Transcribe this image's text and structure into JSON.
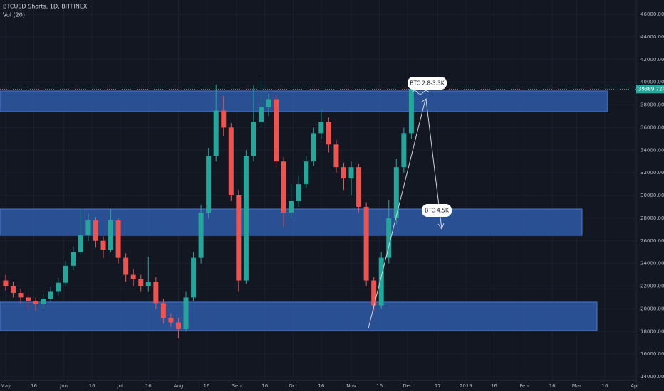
{
  "chart_data": {
    "type": "candlestick",
    "title": "BTCUSD Shorts, 1D, BITFINEX",
    "indicator": "Vol (20)",
    "up_color": "#26a69a",
    "down_color": "#ef5350",
    "zone_color": "#2f5aa8",
    "x": [
      0,
      4,
      8,
      12,
      16,
      20,
      24,
      28,
      32,
      36,
      40,
      44,
      48,
      52,
      56,
      60,
      64,
      68,
      72,
      76,
      80,
      84,
      88,
      92,
      96,
      100,
      104,
      108,
      112,
      116,
      120,
      124,
      128,
      132,
      136,
      140,
      144,
      148,
      152,
      156,
      160,
      164,
      168,
      172,
      176,
      180,
      184,
      188,
      192,
      196,
      200,
      204,
      208,
      212,
      216
    ],
    "open": [
      22500,
      22000,
      21400,
      21000,
      20700,
      20400,
      20900,
      21500,
      22300,
      23800,
      25000,
      26500,
      27800,
      26000,
      25200,
      27800,
      24500,
      23000,
      22600,
      22000,
      22400,
      20500,
      19200,
      18800,
      18200,
      21000,
      24500,
      28500,
      33500,
      37500,
      36000,
      30000,
      22500,
      33500,
      36500,
      37800,
      38500,
      33000,
      28500,
      29500,
      31000,
      33000,
      35500,
      36500,
      34500,
      32500,
      31500,
      32500,
      29000,
      22500,
      20300,
      24500,
      28000,
      32500,
      35500
    ],
    "high": [
      23000,
      22400,
      21800,
      21300,
      21000,
      21300,
      21900,
      22700,
      24200,
      25500,
      28800,
      28400,
      28100,
      26400,
      28800,
      28000,
      24900,
      23500,
      23000,
      24600,
      22800,
      20900,
      19600,
      19200,
      21500,
      25000,
      29200,
      34200,
      39800,
      38800,
      36400,
      30500,
      34000,
      39700,
      40300,
      39000,
      38900,
      33400,
      31000,
      31800,
      33500,
      36000,
      37600,
      36900,
      34900,
      32900,
      33000,
      32800,
      29400,
      22800,
      25000,
      29600,
      33200,
      36000,
      39800
    ],
    "low": [
      21600,
      21000,
      20500,
      20000,
      19800,
      20000,
      20600,
      21200,
      22000,
      23400,
      24700,
      26000,
      25400,
      24500,
      25000,
      24000,
      22400,
      22000,
      21500,
      21500,
      20000,
      18700,
      18400,
      17400,
      18000,
      20700,
      24000,
      28000,
      33000,
      35200,
      29500,
      21500,
      22200,
      33000,
      36000,
      37000,
      32500,
      27200,
      28000,
      29000,
      30600,
      32600,
      35000,
      33800,
      32000,
      30500,
      30000,
      28500,
      22000,
      19800,
      20000,
      24000,
      27500,
      32000,
      35000
    ],
    "close": [
      22000,
      21400,
      21000,
      20700,
      20400,
      20900,
      21500,
      22300,
      23800,
      25000,
      26500,
      27800,
      26000,
      25200,
      27800,
      24500,
      23000,
      22600,
      22000,
      22400,
      20500,
      19200,
      18800,
      18200,
      21000,
      24500,
      28500,
      33500,
      37500,
      36000,
      30000,
      22500,
      33500,
      36500,
      37800,
      38500,
      33000,
      28500,
      29500,
      31000,
      33000,
      35500,
      36500,
      34500,
      32500,
      31500,
      32500,
      29000,
      22500,
      20300,
      24500,
      28000,
      32500,
      35500,
      39400
    ],
    "xlim": [
      -3,
      335.7
    ],
    "xticks": [
      {
        "value": 0,
        "label": "May"
      },
      {
        "value": 15,
        "label": "16"
      },
      {
        "value": 31,
        "label": "Jun"
      },
      {
        "value": 46,
        "label": "16"
      },
      {
        "value": 61,
        "label": "Jul"
      },
      {
        "value": 76,
        "label": "16"
      },
      {
        "value": 92,
        "label": "Aug"
      },
      {
        "value": 107,
        "label": "16"
      },
      {
        "value": 123,
        "label": "Sep"
      },
      {
        "value": 138,
        "label": "16"
      },
      {
        "value": 153,
        "label": "Oct"
      },
      {
        "value": 168,
        "label": "16"
      },
      {
        "value": 184,
        "label": "Nov"
      },
      {
        "value": 199,
        "label": "16"
      },
      {
        "value": 214,
        "label": "Dec"
      },
      {
        "value": 230,
        "label": "17"
      },
      {
        "value": 245,
        "label": "2019"
      },
      {
        "value": 260,
        "label": "16"
      },
      {
        "value": 276,
        "label": "Feb"
      },
      {
        "value": 291,
        "label": "16"
      },
      {
        "value": 304,
        "label": "Mar"
      },
      {
        "value": 319,
        "label": "16"
      },
      {
        "value": 335,
        "label": "Apr"
      }
    ],
    "ylim": [
      14000,
      46000
    ],
    "yticks": [
      {
        "value": 14000,
        "label": "14000.0000"
      },
      {
        "value": 16000,
        "label": "16000.0000"
      },
      {
        "value": 18000,
        "label": "18000.0000"
      },
      {
        "value": 20000,
        "label": "20000.0000"
      },
      {
        "value": 22000,
        "label": "22000.0000"
      },
      {
        "value": 24000,
        "label": "24000.0000"
      },
      {
        "value": 26000,
        "label": "26000.0000"
      },
      {
        "value": 28000,
        "label": "28000.0000"
      },
      {
        "value": 30000,
        "label": "30000.0000"
      },
      {
        "value": 32000,
        "label": "32000.0000"
      },
      {
        "value": 34000,
        "label": "34000.0000"
      },
      {
        "value": 36000,
        "label": "36000.0000"
      },
      {
        "value": 38000,
        "label": "38000.0000"
      },
      {
        "value": 40000,
        "label": "40000.0000"
      },
      {
        "value": 42000,
        "label": "42000.0000"
      },
      {
        "value": 44000,
        "label": "44000.0000"
      },
      {
        "value": 46000,
        "label": "46000.0000"
      }
    ],
    "last_price": 39389.7245,
    "zones": [
      {
        "low": 37404,
        "high": 39224
      },
      {
        "low": 26486,
        "high": 28808
      },
      {
        "low": 18078,
        "high": 20588
      }
    ],
    "annotations": [
      "BTC 2.8-3.3K",
      "BTC 4.5K"
    ]
  }
}
